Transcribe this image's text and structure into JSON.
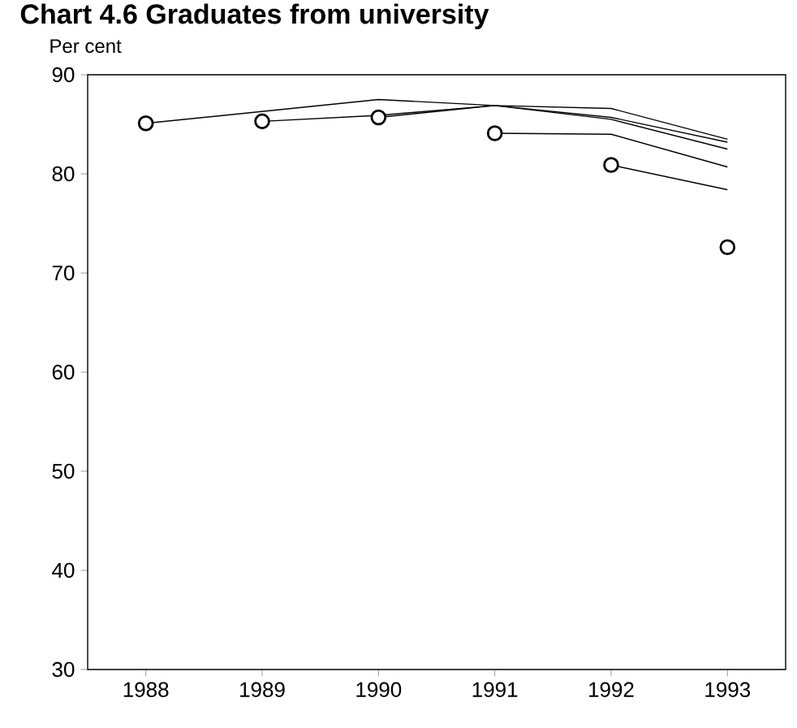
{
  "chart_data": {
    "type": "line",
    "title": "Chart 4.6 Graduates from university",
    "ylabel": "Per cent",
    "x": [
      1988,
      1989,
      1990,
      1991,
      1992,
      1993
    ],
    "xlim": [
      1987.5,
      1993.5
    ],
    "ylim": [
      30,
      90
    ],
    "xticks": [
      1988,
      1989,
      1990,
      1991,
      1992,
      1993
    ],
    "yticks": [
      30,
      40,
      50,
      60,
      70,
      80,
      90
    ],
    "grid": false,
    "legend": false,
    "series": [
      {
        "marker": "none",
        "color": "#000000",
        "values": [
          85.1,
          null,
          87.5,
          86.9,
          86.6,
          83.5
        ]
      },
      {
        "marker": "none",
        "color": "#000000",
        "values": [
          null,
          85.3,
          85.9,
          86.9,
          85.7,
          83.2
        ]
      },
      {
        "marker": "none",
        "color": "#000000",
        "values": [
          null,
          null,
          85.7,
          86.9,
          85.5,
          82.5
        ]
      },
      {
        "marker": "none",
        "color": "#000000",
        "values": [
          null,
          null,
          null,
          84.1,
          84.0,
          80.7
        ]
      },
      {
        "marker": "none",
        "color": "#000000",
        "values": [
          null,
          null,
          null,
          null,
          80.9,
          78.4
        ]
      },
      {
        "type": "scatter",
        "marker": "circle",
        "color": "#000000",
        "values": [
          85.1,
          85.3,
          85.7,
          84.1,
          80.9,
          72.6
        ]
      }
    ]
  }
}
